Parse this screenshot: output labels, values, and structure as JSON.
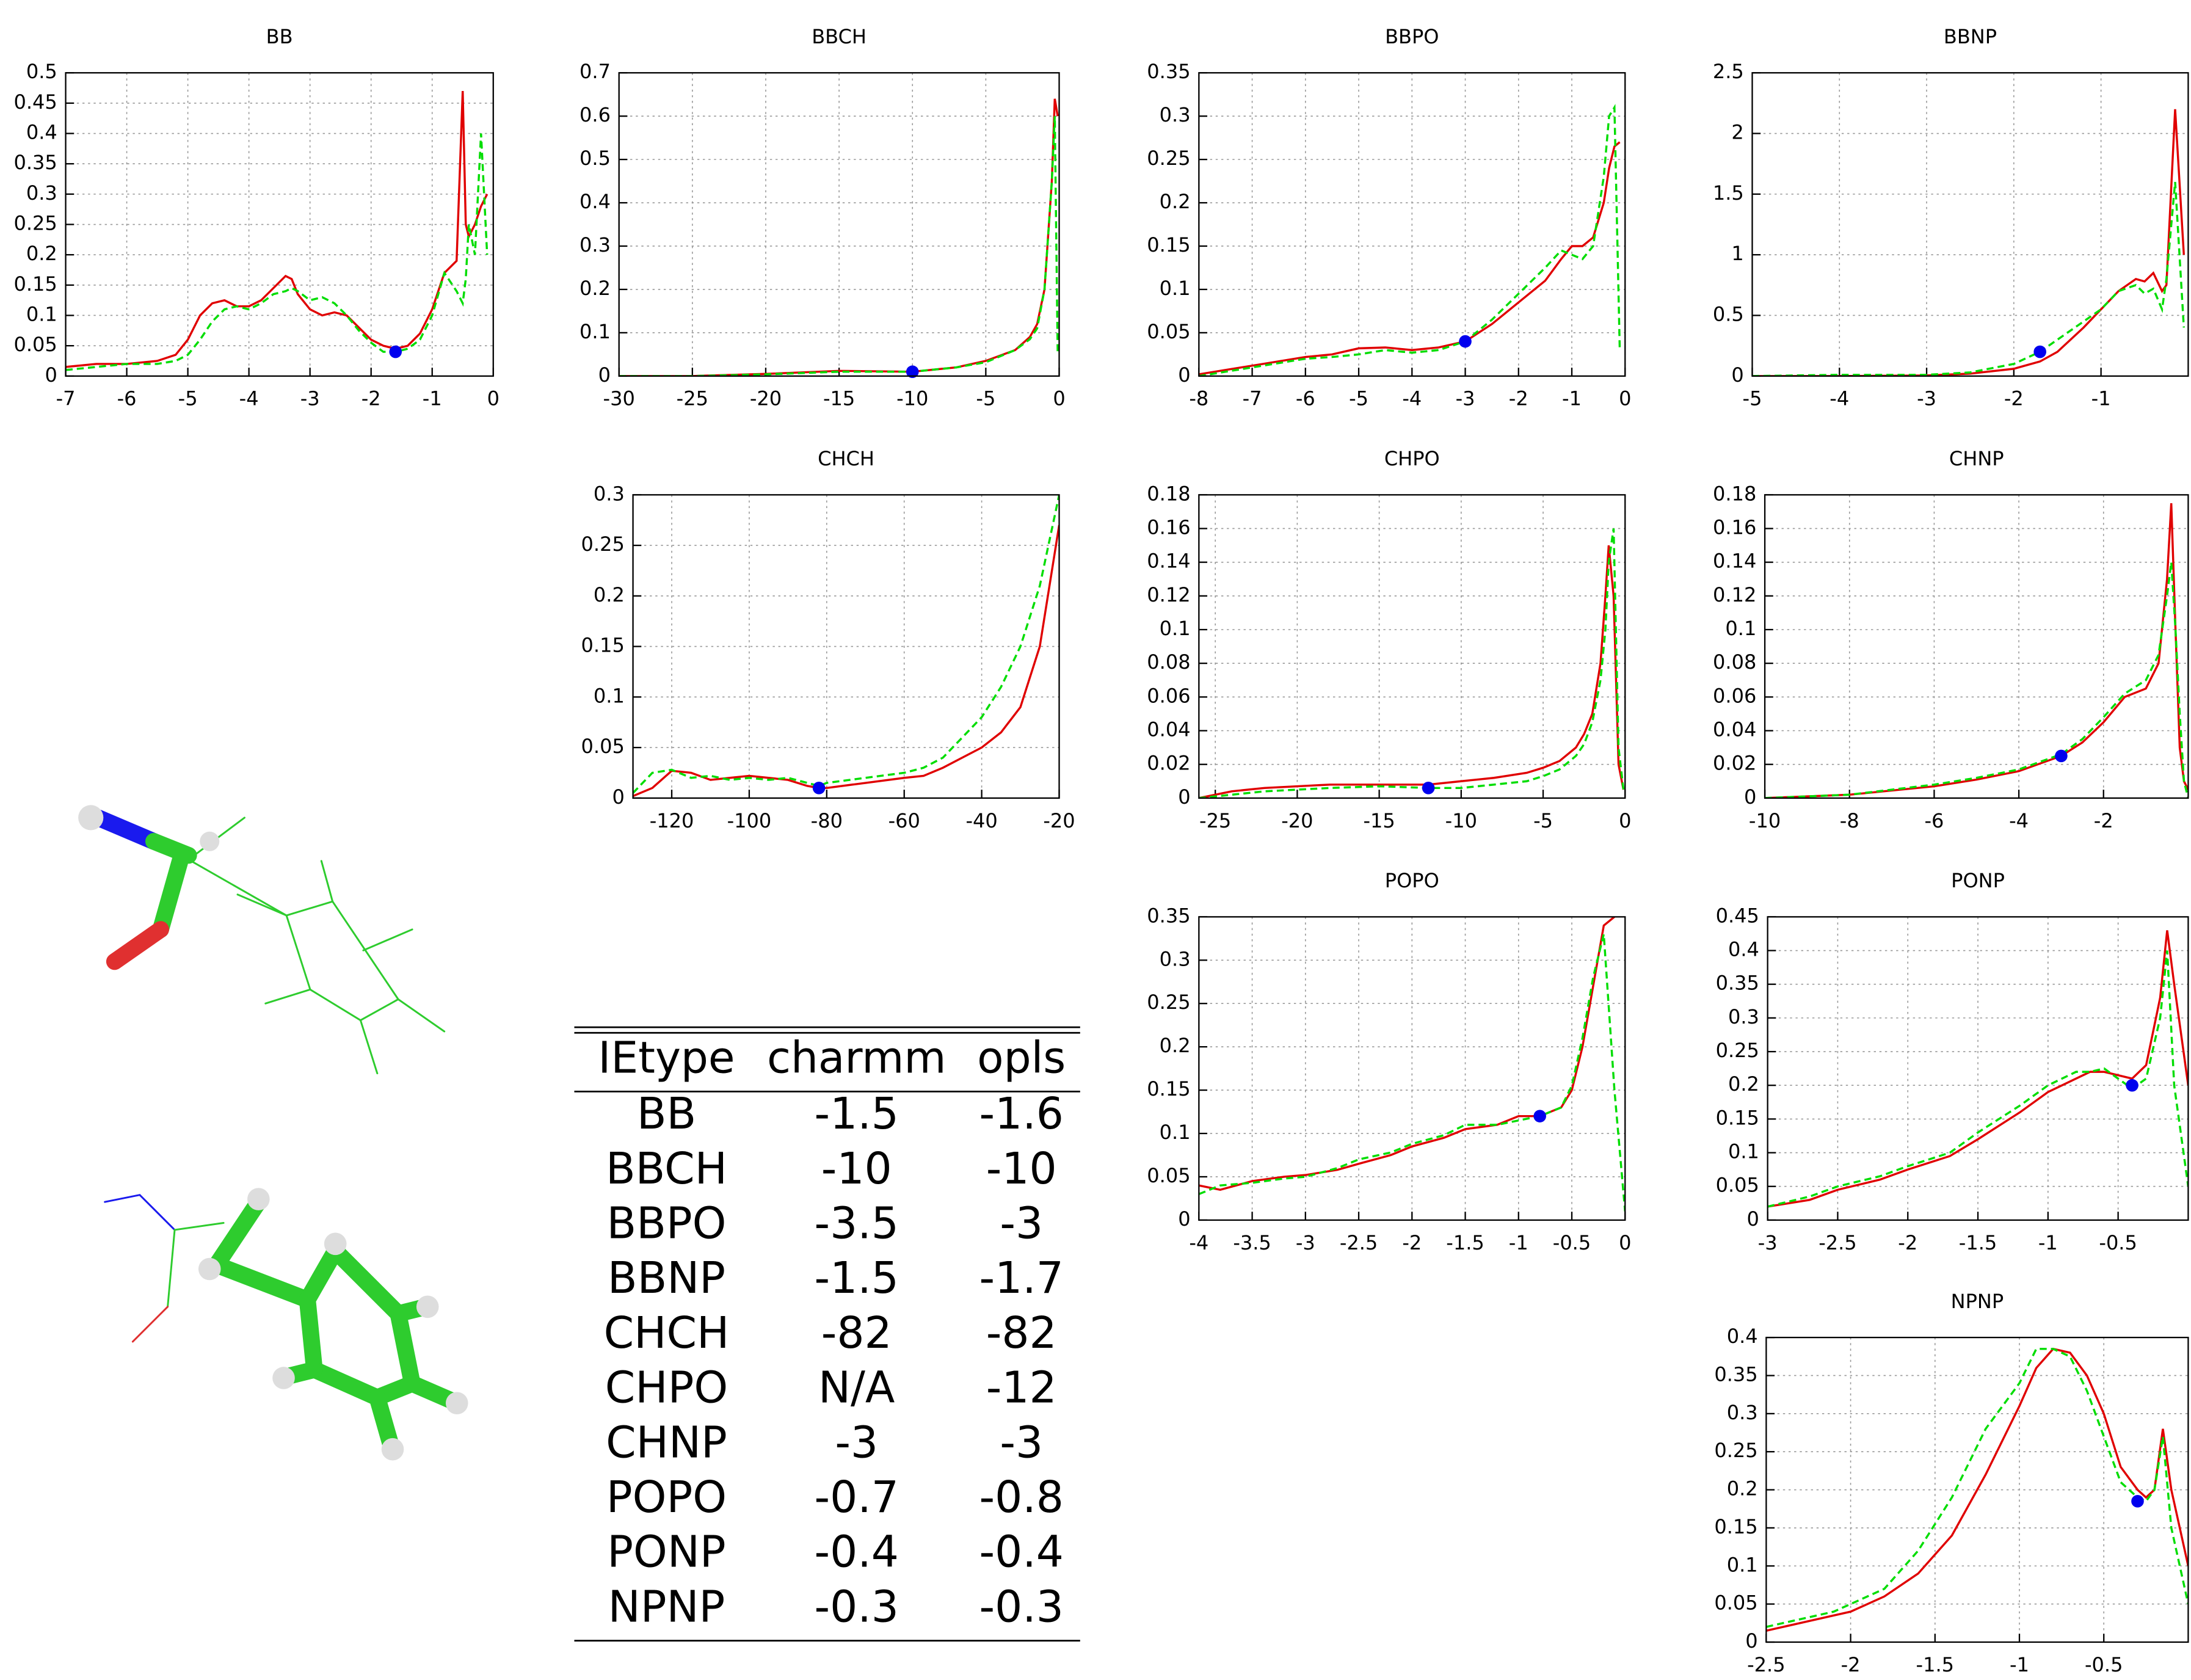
{
  "chart_data": [
    {
      "type": "line",
      "title": "BB",
      "xlim": [
        -7,
        0
      ],
      "ylim": [
        0,
        0.5
      ],
      "xticks": [
        -7,
        -6,
        -5,
        -4,
        -3,
        -2,
        -1,
        0
      ],
      "yticks": [
        0,
        0.05,
        0.1,
        0.15,
        0.2,
        0.25,
        0.3,
        0.35,
        0.4,
        0.45,
        0.5
      ],
      "grid": true,
      "x": [
        -7,
        -6.5,
        -6,
        -5.5,
        -5.2,
        -5,
        -4.8,
        -4.6,
        -4.4,
        -4.2,
        -4,
        -3.8,
        -3.6,
        -3.4,
        -3.3,
        -3.2,
        -3,
        -2.8,
        -2.6,
        -2.4,
        -2.2,
        -2,
        -1.8,
        -1.6,
        -1.4,
        -1.2,
        -1,
        -0.8,
        -0.6,
        -0.5,
        -0.45,
        -0.4,
        -0.3,
        -0.2,
        -0.1
      ],
      "series": [
        {
          "color": "#e00000",
          "dashed": false,
          "values": [
            0.015,
            0.02,
            0.02,
            0.025,
            0.035,
            0.06,
            0.1,
            0.12,
            0.125,
            0.115,
            0.115,
            0.125,
            0.145,
            0.165,
            0.16,
            0.135,
            0.11,
            0.1,
            0.105,
            0.1,
            0.08,
            0.06,
            0.05,
            0.045,
            0.05,
            0.07,
            0.11,
            0.17,
            0.19,
            0.47,
            0.25,
            0.23,
            0.25,
            0.28,
            0.3
          ]
        },
        {
          "color": "#00dd00",
          "dashed": true,
          "values": [
            0.01,
            0.015,
            0.02,
            0.02,
            0.025,
            0.035,
            0.06,
            0.09,
            0.11,
            0.115,
            0.11,
            0.12,
            0.135,
            0.14,
            0.145,
            0.14,
            0.125,
            0.13,
            0.12,
            0.1,
            0.075,
            0.055,
            0.04,
            0.04,
            0.045,
            0.06,
            0.1,
            0.17,
            0.14,
            0.12,
            0.16,
            0.25,
            0.2,
            0.4,
            0.2
          ]
        }
      ],
      "marker": {
        "x": -1.6,
        "y": 0.04,
        "color": "#0000ee"
      }
    },
    {
      "type": "line",
      "title": "BBCH",
      "xlim": [
        -30,
        0
      ],
      "ylim": [
        0,
        0.7
      ],
      "xticks": [
        -30,
        -25,
        -20,
        -15,
        -10,
        -5,
        0
      ],
      "yticks": [
        0,
        0.1,
        0.2,
        0.3,
        0.4,
        0.5,
        0.6,
        0.7
      ],
      "grid": true,
      "x": [
        -30,
        -25,
        -20,
        -15,
        -10,
        -7,
        -5,
        -3,
        -2,
        -1.5,
        -1,
        -0.7,
        -0.5,
        -0.3,
        -0.1
      ],
      "series": [
        {
          "color": "#e00000",
          "dashed": false,
          "values": [
            0,
            0,
            0.005,
            0.012,
            0.01,
            0.02,
            0.035,
            0.06,
            0.09,
            0.12,
            0.2,
            0.35,
            0.45,
            0.64,
            0.6
          ]
        },
        {
          "color": "#00dd00",
          "dashed": true,
          "values": [
            0,
            0,
            0.004,
            0.01,
            0.01,
            0.02,
            0.032,
            0.06,
            0.085,
            0.11,
            0.2,
            0.35,
            0.45,
            0.6,
            0.05
          ]
        }
      ],
      "marker": {
        "x": -10,
        "y": 0.01,
        "color": "#0000ee"
      }
    },
    {
      "type": "line",
      "title": "BBPO",
      "xlim": [
        -8,
        0
      ],
      "ylim": [
        0,
        0.35
      ],
      "xticks": [
        -8,
        -7,
        -6,
        -5,
        -4,
        -3,
        -2,
        -1,
        0
      ],
      "yticks": [
        0,
        0.05,
        0.1,
        0.15,
        0.2,
        0.25,
        0.3,
        0.35
      ],
      "grid": true,
      "x": [
        -8,
        -7.5,
        -7,
        -6.5,
        -6,
        -5.5,
        -5,
        -4.5,
        -4,
        -3.5,
        -3,
        -2.5,
        -2,
        -1.5,
        -1.2,
        -1,
        -0.8,
        -0.6,
        -0.4,
        -0.3,
        -0.2,
        -0.1
      ],
      "series": [
        {
          "color": "#e00000",
          "dashed": false,
          "values": [
            0.002,
            0.007,
            0.012,
            0.017,
            0.022,
            0.025,
            0.032,
            0.033,
            0.03,
            0.033,
            0.04,
            0.06,
            0.085,
            0.11,
            0.135,
            0.15,
            0.15,
            0.16,
            0.2,
            0.24,
            0.265,
            0.27
          ]
        },
        {
          "color": "#00dd00",
          "dashed": true,
          "values": [
            0,
            0.005,
            0.01,
            0.015,
            0.02,
            0.022,
            0.025,
            0.03,
            0.027,
            0.03,
            0.04,
            0.065,
            0.095,
            0.125,
            0.145,
            0.14,
            0.135,
            0.15,
            0.23,
            0.3,
            0.31,
            0.03
          ]
        }
      ],
      "marker": {
        "x": -3,
        "y": 0.04,
        "color": "#0000ee"
      }
    },
    {
      "type": "line",
      "title": "BBNP",
      "xlim": [
        -5,
        0
      ],
      "ylim": [
        0,
        2.5
      ],
      "xticks": [
        -5,
        -4,
        -3,
        -2,
        -1
      ],
      "yticks": [
        0,
        0.5,
        1,
        1.5,
        2,
        2.5
      ],
      "grid": true,
      "x": [
        -5,
        -4,
        -3,
        -2.5,
        -2,
        -1.7,
        -1.5,
        -1.2,
        -1,
        -0.8,
        -0.6,
        -0.5,
        -0.4,
        -0.3,
        -0.25,
        -0.15,
        -0.05
      ],
      "series": [
        {
          "color": "#e00000",
          "dashed": false,
          "values": [
            0,
            0,
            0.005,
            0.02,
            0.06,
            0.12,
            0.2,
            0.4,
            0.55,
            0.7,
            0.8,
            0.78,
            0.85,
            0.7,
            0.75,
            2.2,
            1.0
          ]
        },
        {
          "color": "#00dd00",
          "dashed": true,
          "values": [
            0,
            0.01,
            0.01,
            0.03,
            0.1,
            0.2,
            0.3,
            0.45,
            0.55,
            0.7,
            0.75,
            0.68,
            0.72,
            0.55,
            0.8,
            1.6,
            0.4
          ]
        }
      ],
      "marker": {
        "x": -1.7,
        "y": 0.2,
        "color": "#0000ee"
      }
    },
    {
      "type": "line",
      "title": "CHCH",
      "xlim": [
        -130,
        -20
      ],
      "ylim": [
        0,
        0.3
      ],
      "xticks": [
        -120,
        -100,
        -80,
        -60,
        -40,
        -20
      ],
      "yticks": [
        0,
        0.05,
        0.1,
        0.15,
        0.2,
        0.25,
        0.3
      ],
      "grid": true,
      "x": [
        -130,
        -125,
        -120,
        -115,
        -110,
        -105,
        -100,
        -95,
        -90,
        -85,
        -82,
        -80,
        -70,
        -60,
        -55,
        -50,
        -45,
        -40,
        -35,
        -30,
        -25,
        -20
      ],
      "series": [
        {
          "color": "#e00000",
          "dashed": false,
          "values": [
            0.002,
            0.01,
            0.027,
            0.025,
            0.018,
            0.02,
            0.022,
            0.02,
            0.018,
            0.012,
            0.01,
            0.01,
            0.015,
            0.02,
            0.022,
            0.03,
            0.04,
            0.05,
            0.065,
            0.09,
            0.15,
            0.27
          ]
        },
        {
          "color": "#00dd00",
          "dashed": true,
          "values": [
            0.005,
            0.025,
            0.028,
            0.02,
            0.022,
            0.018,
            0.02,
            0.018,
            0.02,
            0.015,
            0.012,
            0.015,
            0.02,
            0.025,
            0.03,
            0.04,
            0.06,
            0.08,
            0.11,
            0.15,
            0.21,
            0.3
          ]
        }
      ],
      "marker": {
        "x": -82,
        "y": 0.01,
        "color": "#0000ee"
      }
    },
    {
      "type": "line",
      "title": "CHPO",
      "xlim": [
        -26,
        0
      ],
      "ylim": [
        0,
        0.18
      ],
      "xticks": [
        -25,
        -20,
        -15,
        -10,
        -5,
        0
      ],
      "yticks": [
        0,
        0.02,
        0.04,
        0.06,
        0.08,
        0.1,
        0.12,
        0.14,
        0.16,
        0.18
      ],
      "grid": true,
      "x": [
        -26,
        -24,
        -22,
        -20,
        -18,
        -15,
        -12,
        -10,
        -8,
        -6,
        -5,
        -4,
        -3,
        -2.5,
        -2,
        -1.5,
        -1.2,
        -1,
        -0.7,
        -0.4,
        -0.1
      ],
      "series": [
        {
          "color": "#e00000",
          "dashed": false,
          "values": [
            0,
            0.004,
            0.006,
            0.007,
            0.008,
            0.008,
            0.008,
            0.01,
            0.012,
            0.015,
            0.018,
            0.022,
            0.03,
            0.038,
            0.05,
            0.08,
            0.12,
            0.15,
            0.12,
            0.02,
            0.005
          ]
        },
        {
          "color": "#00dd00",
          "dashed": true,
          "values": [
            0,
            0.002,
            0.004,
            0.005,
            0.006,
            0.007,
            0.006,
            0.006,
            0.008,
            0.01,
            0.013,
            0.017,
            0.025,
            0.032,
            0.045,
            0.07,
            0.1,
            0.14,
            0.16,
            0.03,
            0.005
          ]
        }
      ],
      "marker": {
        "x": -12,
        "y": 0.006,
        "color": "#0000ee"
      }
    },
    {
      "type": "line",
      "title": "CHNP",
      "xlim": [
        -10,
        0
      ],
      "ylim": [
        0,
        0.18
      ],
      "xticks": [
        -10,
        -8,
        -6,
        -4,
        -2
      ],
      "yticks": [
        0,
        0.02,
        0.04,
        0.06,
        0.08,
        0.1,
        0.12,
        0.14,
        0.16,
        0.18
      ],
      "grid": true,
      "x": [
        -10,
        -8,
        -6,
        -5,
        -4,
        -3,
        -2.5,
        -2,
        -1.5,
        -1,
        -0.7,
        -0.5,
        -0.4,
        -0.3,
        -0.2,
        -0.1,
        0
      ],
      "series": [
        {
          "color": "#e00000",
          "dashed": false,
          "values": [
            0,
            0.002,
            0.007,
            0.011,
            0.016,
            0.025,
            0.033,
            0.045,
            0.06,
            0.065,
            0.08,
            0.13,
            0.175,
            0.1,
            0.03,
            0.01,
            0.005
          ]
        },
        {
          "color": "#00dd00",
          "dashed": true,
          "values": [
            0,
            0.002,
            0.008,
            0.012,
            0.017,
            0.026,
            0.035,
            0.048,
            0.062,
            0.07,
            0.085,
            0.12,
            0.14,
            0.1,
            0.05,
            0.01,
            0
          ]
        }
      ],
      "marker": {
        "x": -3,
        "y": 0.025,
        "color": "#0000ee"
      }
    },
    {
      "type": "line",
      "title": "POPO",
      "xlim": [
        -4,
        0
      ],
      "ylim": [
        0,
        0.35
      ],
      "xticks": [
        -4,
        -3.5,
        -3,
        -2.5,
        -2,
        -1.5,
        -1,
        -0.5,
        0
      ],
      "yticks": [
        0,
        0.05,
        0.1,
        0.15,
        0.2,
        0.25,
        0.3,
        0.35
      ],
      "grid": true,
      "x": [
        -4,
        -3.8,
        -3.5,
        -3.2,
        -3,
        -2.7,
        -2.5,
        -2.2,
        -2,
        -1.7,
        -1.5,
        -1.2,
        -1,
        -0.8,
        -0.6,
        -0.5,
        -0.4,
        -0.3,
        -0.2,
        -0.1,
        0
      ],
      "series": [
        {
          "color": "#e00000",
          "dashed": false,
          "values": [
            0.04,
            0.035,
            0.045,
            0.05,
            0.052,
            0.058,
            0.065,
            0.075,
            0.085,
            0.095,
            0.105,
            0.11,
            0.12,
            0.12,
            0.13,
            0.15,
            0.2,
            0.27,
            0.34,
            0.35,
            null
          ]
        },
        {
          "color": "#00dd00",
          "dashed": true,
          "values": [
            0.03,
            0.04,
            0.043,
            0.048,
            0.05,
            0.06,
            0.07,
            0.078,
            0.088,
            0.098,
            0.11,
            0.11,
            0.115,
            0.12,
            0.13,
            0.155,
            0.21,
            0.28,
            0.33,
            0.15,
            0.01
          ]
        }
      ],
      "marker": {
        "x": -0.8,
        "y": 0.12,
        "color": "#0000ee"
      }
    },
    {
      "type": "line",
      "title": "PONP",
      "xlim": [
        -3,
        0
      ],
      "ylim": [
        0,
        0.45
      ],
      "xticks": [
        -3,
        -2.5,
        -2,
        -1.5,
        -1,
        -0.5
      ],
      "yticks": [
        0,
        0.05,
        0.1,
        0.15,
        0.2,
        0.25,
        0.3,
        0.35,
        0.4,
        0.45
      ],
      "grid": true,
      "x": [
        -3,
        -2.7,
        -2.5,
        -2.2,
        -2,
        -1.7,
        -1.5,
        -1.2,
        -1,
        -0.8,
        -0.7,
        -0.6,
        -0.5,
        -0.4,
        -0.3,
        -0.2,
        -0.15,
        -0.1,
        0
      ],
      "series": [
        {
          "color": "#e00000",
          "dashed": false,
          "values": [
            0.02,
            0.03,
            0.045,
            0.06,
            0.075,
            0.095,
            0.12,
            0.16,
            0.19,
            0.21,
            0.22,
            0.22,
            0.215,
            0.21,
            0.23,
            0.33,
            0.43,
            0.35,
            0.2
          ]
        },
        {
          "color": "#00dd00",
          "dashed": true,
          "values": [
            0.02,
            0.035,
            0.05,
            0.065,
            0.08,
            0.1,
            0.13,
            0.17,
            0.2,
            0.22,
            0.22,
            0.225,
            0.21,
            0.195,
            0.21,
            0.3,
            0.4,
            0.2,
            0.05
          ]
        }
      ],
      "marker": {
        "x": -0.4,
        "y": 0.2,
        "color": "#0000ee"
      }
    },
    {
      "type": "line",
      "title": "NPNP",
      "xlim": [
        -2.5,
        0
      ],
      "ylim": [
        0,
        0.4
      ],
      "xticks": [
        -2.5,
        -2,
        -1.5,
        -1,
        -0.5
      ],
      "yticks": [
        0,
        0.05,
        0.1,
        0.15,
        0.2,
        0.25,
        0.3,
        0.35,
        0.4
      ],
      "grid": true,
      "x": [
        -2.5,
        -2.3,
        -2.1,
        -2,
        -1.8,
        -1.6,
        -1.4,
        -1.2,
        -1,
        -0.9,
        -0.8,
        -0.7,
        -0.6,
        -0.5,
        -0.4,
        -0.3,
        -0.25,
        -0.2,
        -0.15,
        -0.1,
        0
      ],
      "series": [
        {
          "color": "#e00000",
          "dashed": false,
          "values": [
            0.015,
            0.025,
            0.035,
            0.04,
            0.06,
            0.09,
            0.14,
            0.22,
            0.31,
            0.36,
            0.385,
            0.38,
            0.35,
            0.3,
            0.23,
            0.2,
            0.19,
            0.2,
            0.28,
            0.2,
            0.1
          ]
        },
        {
          "color": "#00dd00",
          "dashed": true,
          "values": [
            0.02,
            0.03,
            0.04,
            0.05,
            0.07,
            0.12,
            0.19,
            0.28,
            0.34,
            0.385,
            0.385,
            0.375,
            0.33,
            0.27,
            0.21,
            0.19,
            0.185,
            0.2,
            0.27,
            0.15,
            0.05
          ]
        }
      ],
      "marker": {
        "x": -0.3,
        "y": 0.185,
        "color": "#0000ee"
      }
    }
  ],
  "table": {
    "header": [
      "IEtype",
      "charmm",
      "opls"
    ],
    "rows": [
      [
        "BB",
        -1.5,
        -1.6
      ],
      [
        "BBCH",
        -10,
        -10
      ],
      [
        "BBPO",
        -3.5,
        -3
      ],
      [
        "BBNP",
        -1.5,
        -1.7
      ],
      [
        "CHCH",
        -82,
        -82
      ],
      [
        "CHPO",
        "N/A",
        -12
      ],
      [
        "CHNP",
        -3,
        -3
      ],
      [
        "POPO",
        -0.7,
        -0.8
      ],
      [
        "PONP",
        -0.4,
        -0.4
      ],
      [
        "NPNP",
        -0.3,
        -0.3
      ]
    ]
  }
}
